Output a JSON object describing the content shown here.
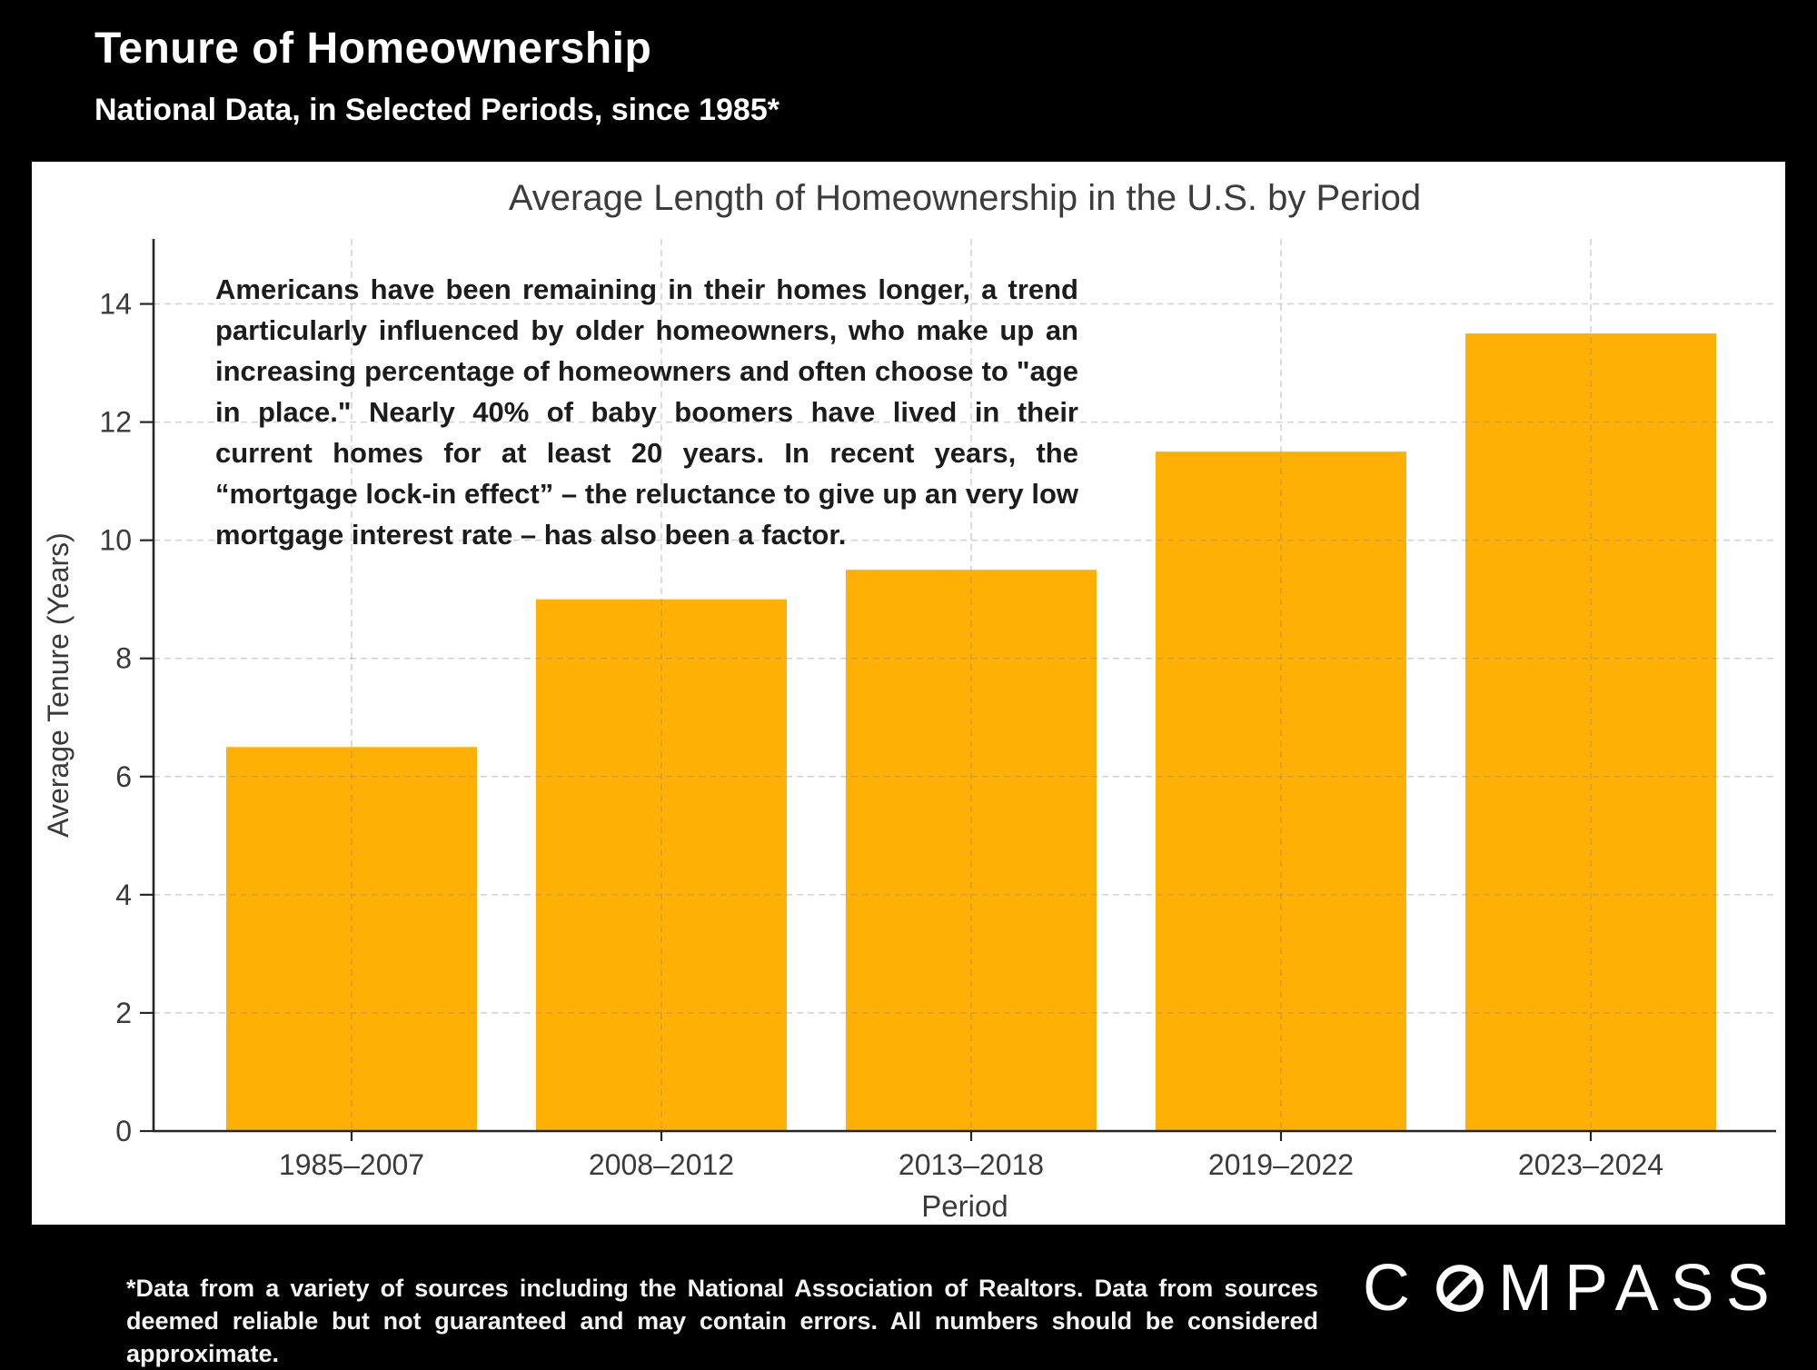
{
  "page": {
    "title": "Tenure of Homeownership",
    "subtitle": "National Data, in Selected Periods, since 1985*"
  },
  "chart_data": {
    "type": "bar",
    "title": "Average Length of Homeownership in the U.S. by Period",
    "categories": [
      "1985–2007",
      "2008–2012",
      "2013–2018",
      "2019–2022",
      "2023–2024"
    ],
    "values": [
      6.5,
      9.0,
      9.5,
      11.5,
      13.5
    ],
    "xlabel": "Period",
    "ylabel": "Average Tenure (Years)",
    "ylim": [
      0,
      15.1
    ],
    "yticks": [
      0,
      2,
      4,
      6,
      8,
      10,
      12,
      14
    ],
    "grid": true,
    "grid_style": "dashed",
    "legend": "none",
    "bar_color": "#FFB005",
    "panel_background": "#FFFFFF",
    "page_background": "#000000",
    "axis_color": "#262626",
    "tick_label_color": "#3a3a3a",
    "annotation": "Americans have been remaining in their homes longer, a trend particularly influenced by older homeowners, who make up an increasing percentage of homeowners and often choose to \"age in place.\" Nearly 40% of baby boomers have lived in their current homes for at least 20 years. In recent years, the “mortgage lock-in effect” – the reluctance to give up an very low mortgage interest rate – has also been a factor."
  },
  "footer": {
    "disclaimer": "*Data from a variety of sources including the National Association of Realtors. Data from sources deemed reliable but not guaranteed and may contain errors. All numbers should be considered approximate.",
    "brand": {
      "full": "COMPASS",
      "pre_o": "C",
      "post_o": "MPASS"
    }
  }
}
